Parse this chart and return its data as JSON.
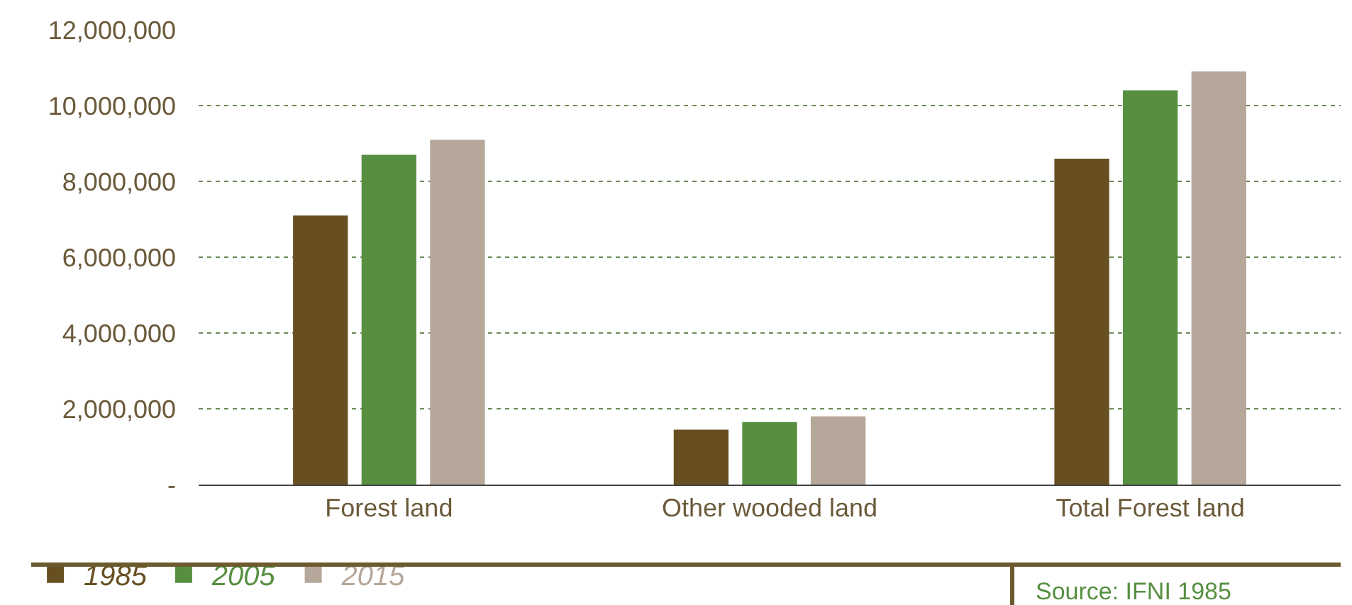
{
  "chart_data": {
    "type": "bar",
    "categories": [
      "Forest land",
      "Other wooded land",
      "Total Forest land"
    ],
    "series": [
      {
        "name": "1985",
        "color": "#674f22",
        "values": [
          7100000,
          1450000,
          8600000
        ]
      },
      {
        "name": "2005",
        "color": "#568f40",
        "values": [
          8700000,
          1650000,
          10400000
        ]
      },
      {
        "name": "2015",
        "color": "#b5a799",
        "values": [
          9100000,
          1800000,
          10900000
        ]
      }
    ],
    "ylim": [
      0,
      12000000
    ],
    "yticks": [
      {
        "value": 0,
        "label": "-"
      },
      {
        "value": 2000000,
        "label": "2,000,000"
      },
      {
        "value": 4000000,
        "label": "4,000,000"
      },
      {
        "value": 6000000,
        "label": "6,000,000"
      },
      {
        "value": 8000000,
        "label": "8,000,000"
      },
      {
        "value": 10000000,
        "label": "10,000,000"
      },
      {
        "value": 12000000,
        "label": "12,000,000"
      }
    ],
    "grid": "y",
    "legend": "bottom left",
    "annotations": [
      "Source: IFNI 1985"
    ]
  }
}
